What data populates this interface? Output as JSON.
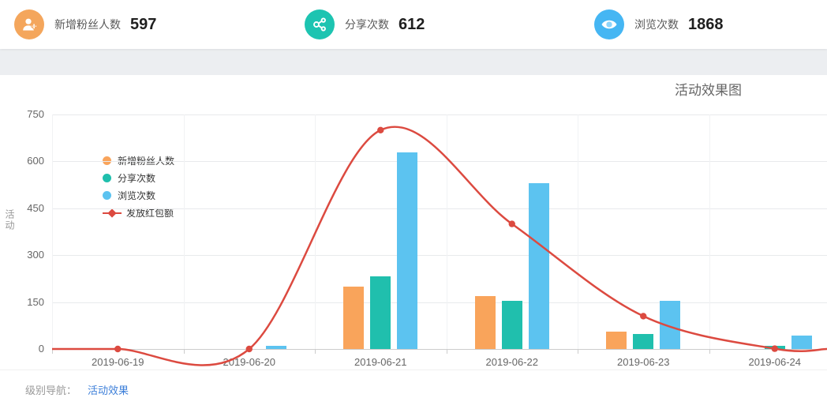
{
  "stats": [
    {
      "label": "新增粉丝人数",
      "value": "597",
      "icon": "user-plus-icon",
      "color": "#F4A65C"
    },
    {
      "label": "分享次数",
      "value": "612",
      "icon": "share-icon",
      "color": "#1DC4B1"
    },
    {
      "label": "浏览次数",
      "value": "1868",
      "icon": "eye-icon",
      "color": "#45B6F3"
    }
  ],
  "chart_data": {
    "type": "bar",
    "title": "活动效果图",
    "ylabel": "活动",
    "xlabel": "",
    "categories": [
      "2019-06-19",
      "2019-06-20",
      "2019-06-21",
      "2019-06-22",
      "2019-06-23",
      "2019-06-24"
    ],
    "series": [
      {
        "name": "新增粉丝人数",
        "type": "bar",
        "color": "#F9A45B",
        "values": [
          0,
          0,
          200,
          170,
          55,
          0
        ]
      },
      {
        "name": "分享次数",
        "type": "bar",
        "color": "#20BFAD",
        "values": [
          0,
          0,
          232,
          155,
          48,
          10
        ]
      },
      {
        "name": "浏览次数",
        "type": "bar",
        "color": "#5CC3F0",
        "values": [
          0,
          10,
          630,
          530,
          155,
          42
        ]
      },
      {
        "name": "发放红包额",
        "type": "line",
        "color": "#DC4A40",
        "values": [
          0,
          0,
          700,
          400,
          105,
          1
        ]
      }
    ],
    "ylim": [
      0,
      750
    ],
    "y_ticks": [
      0,
      150,
      300,
      450,
      600,
      750
    ],
    "grid": true,
    "legend_position": "top-left-inside"
  },
  "breadcrumb": {
    "label": "级别导航：",
    "link": "活动效果"
  }
}
